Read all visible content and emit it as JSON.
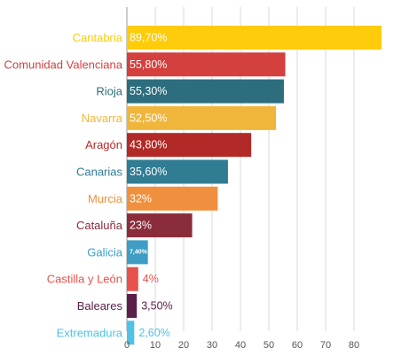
{
  "chart_data": {
    "type": "bar",
    "orientation": "horizontal",
    "categories": [
      "Cantabria",
      "Comunidad Valenciana",
      "Rioja",
      "Navarra",
      "Aragón",
      "Canarias",
      "Murcia",
      "Cataluña",
      "Galicia",
      "Castilla y León",
      "Baleares",
      "Extremadura"
    ],
    "values": [
      89.7,
      55.8,
      55.3,
      52.5,
      43.8,
      35.6,
      32,
      23,
      7.4,
      4,
      3.5,
      2.6
    ],
    "value_labels": [
      "89,70%",
      "55,80%",
      "55,30%",
      "52,50%",
      "43,80%",
      "35,60%",
      "32%",
      "23%",
      "7,40%",
      "4%",
      "3,50%",
      "2,60%"
    ],
    "colors": [
      "#fecc0a",
      "#d3403e",
      "#2c6e7e",
      "#f0b63c",
      "#b22a27",
      "#2f7c93",
      "#f0903e",
      "#8a2c3a",
      "#3d9dc5",
      "#e8514b",
      "#5a2049",
      "#4fc3e6"
    ],
    "value_label_colors_outside": [
      "#ffffff",
      "#ffffff",
      "#ffffff",
      "#ffffff",
      "#ffffff",
      "#ffffff",
      "#ffffff",
      "#ffffff",
      "#ffffff",
      "#e8514b",
      "#5a2049",
      "#4fc3e6"
    ],
    "x_ticks": [
      "0",
      "10",
      "20",
      "30",
      "40",
      "50",
      "60",
      "70",
      "80"
    ],
    "xlim": [
      0,
      90
    ],
    "grid": true,
    "title": "",
    "xlabel": "",
    "ylabel": ""
  }
}
